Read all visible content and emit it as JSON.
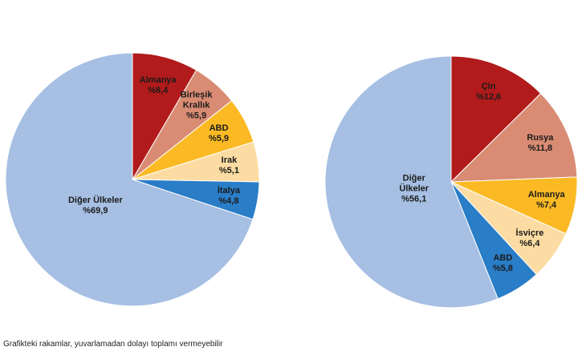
{
  "chart_data": [
    {
      "type": "pie",
      "slices": [
        {
          "label": "Almanya",
          "display": "Almanya\n%8,4",
          "value": 8.4,
          "color": "#B11B1B"
        },
        {
          "label": "Birleşik Krallık",
          "display": "Birleşik\nKrallık\n%5,9",
          "value": 5.9,
          "color": "#D98C73"
        },
        {
          "label": "ABD",
          "display": "ABD\n%5,9",
          "value": 5.9,
          "color": "#FBBA24"
        },
        {
          "label": "Irak",
          "display": "Irak\n%5,1",
          "value": 5.1,
          "color": "#FCDCA2"
        },
        {
          "label": "İtalya",
          "display": "İtalya\n%4,8",
          "value": 4.8,
          "color": "#2A7DC7"
        },
        {
          "label": "Diğer Ülkeler",
          "display": "Diğer Ülkeler\n%69,9",
          "value": 69.9,
          "color": "#A6BFE3"
        }
      ]
    },
    {
      "type": "pie",
      "slices": [
        {
          "label": "Çin",
          "display": "Çin\n%12,6",
          "value": 12.6,
          "color": "#B11B1B"
        },
        {
          "label": "Rusya",
          "display": "Rusya\n%11,8",
          "value": 11.8,
          "color": "#D98C73"
        },
        {
          "label": "Almanya",
          "display": "Almanya\n%7,4",
          "value": 7.4,
          "color": "#FBBA24"
        },
        {
          "label": "İsviçre",
          "display": "İsviçre\n%6,4",
          "value": 6.4,
          "color": "#FCDCA2"
        },
        {
          "label": "ABD",
          "display": "ABD\n%5,8",
          "value": 5.8,
          "color": "#2A7DC7"
        },
        {
          "label": "Diğer Ülkeler",
          "display": "Diğer\nÜlkeler\n%56,1",
          "value": 56.1,
          "color": "#A6BFE3"
        }
      ]
    }
  ],
  "footnote": "Grafikteki rakamlar, yuvarlamadan dolayı toplamı vermeyebilir"
}
